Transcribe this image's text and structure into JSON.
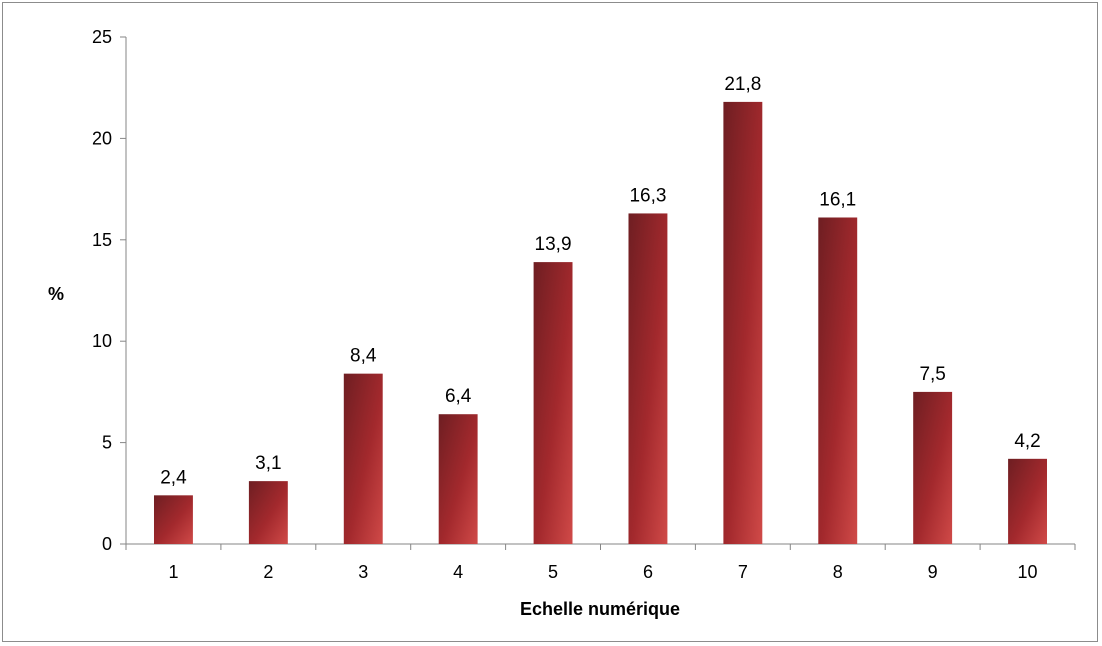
{
  "chart_data": {
    "type": "bar",
    "title": "",
    "xlabel": "Echelle numérique",
    "ylabel": "%",
    "categories": [
      "1",
      "2",
      "3",
      "4",
      "5",
      "6",
      "7",
      "8",
      "9",
      "10"
    ],
    "values": [
      2.4,
      3.1,
      8.4,
      6.4,
      13.9,
      16.3,
      21.8,
      16.1,
      7.5,
      4.2
    ],
    "data_labels": [
      "2,4",
      "3,1",
      "8,4",
      "6,4",
      "13,9",
      "16,3",
      "21,8",
      "16,1",
      "7,5",
      "4,2"
    ],
    "ylim": [
      0,
      25
    ],
    "yticks": [
      "0",
      "5",
      "10",
      "15",
      "20",
      "25"
    ],
    "grid": false,
    "legend": "none",
    "bar_color": "#b83234"
  }
}
